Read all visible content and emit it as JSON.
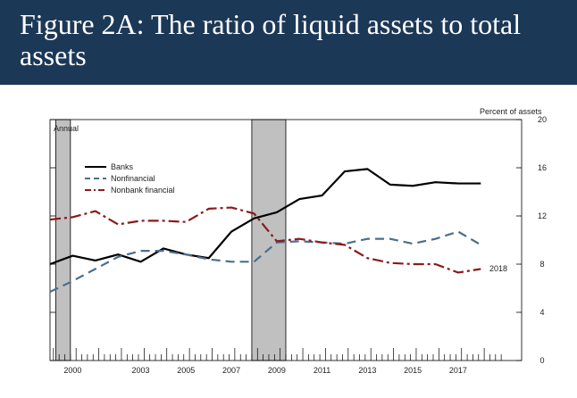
{
  "header": {
    "title": "Figure 2A: The ratio of liquid assets to total assets"
  },
  "chart_data": {
    "type": "line",
    "title": "Figure 2A: The ratio of liquid assets to total assets",
    "frequency_label": "Annual",
    "y_unit_label": "Percent of assets",
    "end_label": "2018",
    "x_tick_labels": [
      "2000",
      "2003",
      "2005",
      "2007",
      "2009",
      "2011",
      "2013",
      "2015",
      "2017"
    ],
    "xlim": [
      1999.0,
      2019.8
    ],
    "ylim": [
      0,
      20
    ],
    "y_ticks": [
      0,
      4,
      8,
      12,
      16,
      20
    ],
    "recessions": [
      [
        1999.25,
        1999.9
      ],
      [
        2007.9,
        2009.4
      ]
    ],
    "legend_position": "top-left",
    "grid": false,
    "series": [
      {
        "name": "Banks",
        "style": "solid",
        "color": "#000000",
        "x": [
          1999,
          2000,
          2001,
          2002,
          2003,
          2004,
          2005,
          2006,
          2007,
          2008,
          2009,
          2010,
          2011,
          2012,
          2013,
          2014,
          2015,
          2016,
          2017,
          2018
        ],
        "values": [
          8.0,
          8.7,
          8.3,
          8.8,
          8.2,
          9.3,
          8.8,
          8.5,
          10.7,
          11.8,
          12.3,
          13.4,
          13.7,
          15.7,
          15.9,
          14.6,
          14.5,
          14.8,
          14.7,
          14.7
        ]
      },
      {
        "name": "Nonfinancial",
        "style": "dashed",
        "color": "#4a6f8f",
        "x": [
          1999,
          2000,
          2001,
          2002,
          2003,
          2004,
          2005,
          2006,
          2007,
          2008,
          2009,
          2010,
          2011,
          2012,
          2013,
          2014,
          2015,
          2016,
          2017,
          2018
        ],
        "values": [
          5.7,
          6.6,
          7.6,
          8.6,
          9.1,
          9.1,
          8.8,
          8.4,
          8.2,
          8.2,
          9.8,
          9.9,
          9.8,
          9.7,
          10.1,
          10.1,
          9.7,
          10.1,
          10.7,
          9.6
        ]
      },
      {
        "name": "Nonbank financial",
        "style": "dashdot",
        "color": "#8b1a1a",
        "x": [
          1999,
          2000,
          2001,
          2002,
          2003,
          2004,
          2005,
          2006,
          2007,
          2008,
          2009,
          2010,
          2011,
          2012,
          2013,
          2014,
          2015,
          2016,
          2017,
          2018
        ],
        "values": [
          11.7,
          11.9,
          12.4,
          11.3,
          11.6,
          11.6,
          11.5,
          12.6,
          12.7,
          12.2,
          9.9,
          10.1,
          9.8,
          9.6,
          8.5,
          8.1,
          8.0,
          8.0,
          7.3,
          7.6
        ]
      }
    ]
  }
}
